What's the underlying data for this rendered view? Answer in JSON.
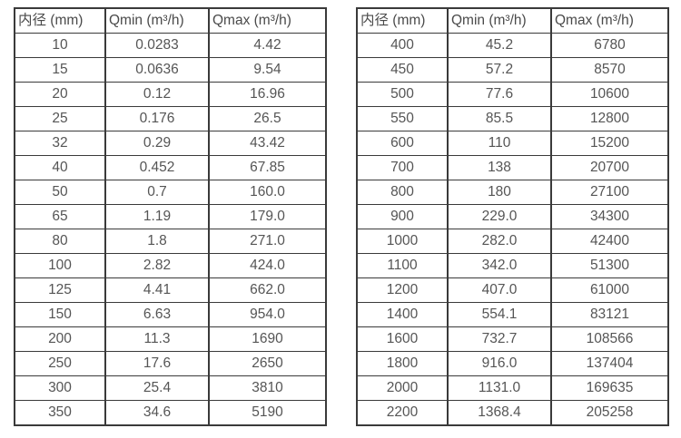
{
  "chart_data": [
    {
      "type": "table",
      "name": "flow-spec-small-diameters",
      "headers": [
        "内径 (mm)",
        "Qmin (m³/h)",
        "Qmax (m³/h)"
      ],
      "rows": [
        [
          "10",
          "0.0283",
          "4.42"
        ],
        [
          "15",
          "0.0636",
          "9.54"
        ],
        [
          "20",
          "0.12",
          "16.96"
        ],
        [
          "25",
          "0.176",
          "26.5"
        ],
        [
          "32",
          "0.29",
          "43.42"
        ],
        [
          "40",
          "0.452",
          "67.85"
        ],
        [
          "50",
          "0.7",
          "160.0"
        ],
        [
          "65",
          "1.19",
          "179.0"
        ],
        [
          "80",
          "1.8",
          "271.0"
        ],
        [
          "100",
          "2.82",
          "424.0"
        ],
        [
          "125",
          "4.41",
          "662.0"
        ],
        [
          "150",
          "6.63",
          "954.0"
        ],
        [
          "200",
          "11.3",
          "1690"
        ],
        [
          "250",
          "17.6",
          "2650"
        ],
        [
          "300",
          "25.4",
          "3810"
        ],
        [
          "350",
          "34.6",
          "5190"
        ]
      ]
    },
    {
      "type": "table",
      "name": "flow-spec-large-diameters",
      "headers": [
        "内径 (mm)",
        "Qmin (m³/h)",
        "Qmax (m³/h)"
      ],
      "rows": [
        [
          "400",
          "45.2",
          "6780"
        ],
        [
          "450",
          "57.2",
          "8570"
        ],
        [
          "500",
          "77.6",
          "10600"
        ],
        [
          "550",
          "85.5",
          "12800"
        ],
        [
          "600",
          "110",
          "15200"
        ],
        [
          "700",
          "138",
          "20700"
        ],
        [
          "800",
          "180",
          "27100"
        ],
        [
          "900",
          "229.0",
          "34300"
        ],
        [
          "1000",
          "282.0",
          "42400"
        ],
        [
          "1100",
          "342.0",
          "51300"
        ],
        [
          "1200",
          "407.0",
          "61000"
        ],
        [
          "1400",
          "554.1",
          "83121"
        ],
        [
          "1600",
          "732.7",
          "108566"
        ],
        [
          "1800",
          "916.0",
          "137404"
        ],
        [
          "2000",
          "1131.0",
          "169635"
        ],
        [
          "2200",
          "1368.4",
          "205258"
        ]
      ]
    }
  ],
  "colors": {
    "border": "#3a3a3a",
    "header_text": "#4a4a4a",
    "cell_text": "#555555",
    "background": "#ffffff"
  },
  "column_names": [
    "diameter",
    "qmin",
    "qmax"
  ]
}
